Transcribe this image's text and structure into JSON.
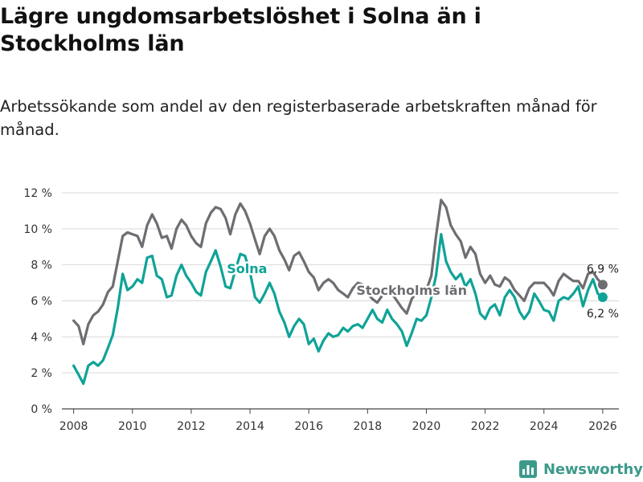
{
  "title": "Lägre ungdomsarbetslöshet i Solna än i Stockholms län",
  "subtitle": "Arbetssökande som andel av den registerbaserade arbetskraften månad för månad.",
  "brand": {
    "name": "Newsworthy",
    "icon": "bar-chart-logo-icon",
    "color": "#3d9a8b"
  },
  "chart_data": {
    "type": "line",
    "title": "Lägre ungdomsarbetslöshet i Solna än i Stockholms län",
    "xlabel": "",
    "ylabel": "",
    "xlim": [
      2007.6,
      2026.55
    ],
    "ylim": [
      0,
      12
    ],
    "grid": true,
    "x_ticks": [
      2008,
      2010,
      2012,
      2014,
      2016,
      2018,
      2020,
      2022,
      2024,
      2026
    ],
    "y_ticks": [
      0,
      2,
      4,
      6,
      8,
      10,
      12
    ],
    "y_tick_labels": [
      "0 %",
      "2 %",
      "4 %",
      "6 %",
      "8 %",
      "10 %",
      "12 %"
    ],
    "series": [
      {
        "name": "Stockholms län",
        "color": "#6d6d72",
        "end_label": "6,9 %",
        "label_at": [
          2019.5,
          6.6
        ],
        "points": [
          [
            2008.0,
            4.9
          ],
          [
            2008.17,
            4.6
          ],
          [
            2008.33,
            3.6
          ],
          [
            2008.5,
            4.7
          ],
          [
            2008.67,
            5.2
          ],
          [
            2008.83,
            5.4
          ],
          [
            2009.0,
            5.8
          ],
          [
            2009.17,
            6.5
          ],
          [
            2009.33,
            6.8
          ],
          [
            2009.5,
            8.2
          ],
          [
            2009.67,
            9.6
          ],
          [
            2009.83,
            9.8
          ],
          [
            2010.0,
            9.7
          ],
          [
            2010.17,
            9.6
          ],
          [
            2010.33,
            9.0
          ],
          [
            2010.5,
            10.2
          ],
          [
            2010.67,
            10.8
          ],
          [
            2010.83,
            10.3
          ],
          [
            2011.0,
            9.5
          ],
          [
            2011.17,
            9.6
          ],
          [
            2011.33,
            8.9
          ],
          [
            2011.5,
            10.0
          ],
          [
            2011.67,
            10.5
          ],
          [
            2011.83,
            10.2
          ],
          [
            2012.0,
            9.6
          ],
          [
            2012.17,
            9.2
          ],
          [
            2012.33,
            9.0
          ],
          [
            2012.5,
            10.3
          ],
          [
            2012.67,
            10.9
          ],
          [
            2012.83,
            11.2
          ],
          [
            2013.0,
            11.1
          ],
          [
            2013.17,
            10.6
          ],
          [
            2013.33,
            9.7
          ],
          [
            2013.5,
            10.8
          ],
          [
            2013.67,
            11.4
          ],
          [
            2013.83,
            11.0
          ],
          [
            2014.0,
            10.3
          ],
          [
            2014.17,
            9.4
          ],
          [
            2014.33,
            8.6
          ],
          [
            2014.5,
            9.6
          ],
          [
            2014.67,
            10.0
          ],
          [
            2014.83,
            9.6
          ],
          [
            2015.0,
            8.8
          ],
          [
            2015.17,
            8.3
          ],
          [
            2015.33,
            7.7
          ],
          [
            2015.5,
            8.5
          ],
          [
            2015.67,
            8.7
          ],
          [
            2015.83,
            8.2
          ],
          [
            2016.0,
            7.6
          ],
          [
            2016.17,
            7.3
          ],
          [
            2016.33,
            6.6
          ],
          [
            2016.5,
            7.0
          ],
          [
            2016.67,
            7.2
          ],
          [
            2016.83,
            7.0
          ],
          [
            2017.0,
            6.6
          ],
          [
            2017.17,
            6.4
          ],
          [
            2017.33,
            6.2
          ],
          [
            2017.5,
            6.7
          ],
          [
            2017.67,
            7.0
          ],
          [
            2017.83,
            6.9
          ],
          [
            2018.0,
            6.4
          ],
          [
            2018.17,
            6.1
          ],
          [
            2018.33,
            5.9
          ],
          [
            2018.5,
            6.3
          ],
          [
            2018.67,
            6.6
          ],
          [
            2018.83,
            6.4
          ],
          [
            2019.0,
            6.0
          ],
          [
            2019.17,
            5.6
          ],
          [
            2019.33,
            5.3
          ],
          [
            2019.5,
            6.1
          ],
          [
            2019.67,
            6.5
          ],
          [
            2019.83,
            6.4
          ],
          [
            2020.0,
            6.6
          ],
          [
            2020.17,
            7.4
          ],
          [
            2020.33,
            9.6
          ],
          [
            2020.5,
            11.6
          ],
          [
            2020.67,
            11.2
          ],
          [
            2020.83,
            10.2
          ],
          [
            2021.0,
            9.7
          ],
          [
            2021.17,
            9.3
          ],
          [
            2021.33,
            8.4
          ],
          [
            2021.5,
            9.0
          ],
          [
            2021.67,
            8.6
          ],
          [
            2021.83,
            7.5
          ],
          [
            2022.0,
            7.0
          ],
          [
            2022.17,
            7.4
          ],
          [
            2022.33,
            6.9
          ],
          [
            2022.5,
            6.8
          ],
          [
            2022.67,
            7.3
          ],
          [
            2022.83,
            7.1
          ],
          [
            2023.0,
            6.6
          ],
          [
            2023.17,
            6.3
          ],
          [
            2023.33,
            6.0
          ],
          [
            2023.5,
            6.7
          ],
          [
            2023.67,
            7.0
          ],
          [
            2023.83,
            7.0
          ],
          [
            2024.0,
            7.0
          ],
          [
            2024.17,
            6.7
          ],
          [
            2024.33,
            6.3
          ],
          [
            2024.5,
            7.1
          ],
          [
            2024.67,
            7.5
          ],
          [
            2024.83,
            7.3
          ],
          [
            2025.0,
            7.1
          ],
          [
            2025.17,
            7.1
          ],
          [
            2025.33,
            6.7
          ],
          [
            2025.5,
            7.5
          ],
          [
            2025.67,
            7.6
          ],
          [
            2025.83,
            7.2
          ],
          [
            2026.0,
            6.9
          ]
        ]
      },
      {
        "name": "Solna",
        "color": "#0fa397",
        "end_label": "6,2 %",
        "label_at": [
          2013.9,
          7.8
        ],
        "points": [
          [
            2008.0,
            2.4
          ],
          [
            2008.17,
            1.9
          ],
          [
            2008.33,
            1.4
          ],
          [
            2008.5,
            2.4
          ],
          [
            2008.67,
            2.6
          ],
          [
            2008.83,
            2.4
          ],
          [
            2009.0,
            2.7
          ],
          [
            2009.17,
            3.4
          ],
          [
            2009.33,
            4.1
          ],
          [
            2009.5,
            5.6
          ],
          [
            2009.67,
            7.5
          ],
          [
            2009.83,
            6.6
          ],
          [
            2010.0,
            6.8
          ],
          [
            2010.17,
            7.2
          ],
          [
            2010.33,
            7.0
          ],
          [
            2010.5,
            8.4
          ],
          [
            2010.67,
            8.5
          ],
          [
            2010.83,
            7.4
          ],
          [
            2011.0,
            7.2
          ],
          [
            2011.17,
            6.2
          ],
          [
            2011.33,
            6.3
          ],
          [
            2011.5,
            7.4
          ],
          [
            2011.67,
            8.0
          ],
          [
            2011.83,
            7.4
          ],
          [
            2012.0,
            7.0
          ],
          [
            2012.17,
            6.5
          ],
          [
            2012.33,
            6.3
          ],
          [
            2012.5,
            7.6
          ],
          [
            2012.67,
            8.2
          ],
          [
            2012.83,
            8.8
          ],
          [
            2013.0,
            7.9
          ],
          [
            2013.17,
            6.8
          ],
          [
            2013.33,
            6.7
          ],
          [
            2013.5,
            7.7
          ],
          [
            2013.67,
            8.6
          ],
          [
            2013.83,
            8.5
          ],
          [
            2014.0,
            7.6
          ],
          [
            2014.17,
            6.2
          ],
          [
            2014.33,
            5.9
          ],
          [
            2014.5,
            6.4
          ],
          [
            2014.67,
            7.0
          ],
          [
            2014.83,
            6.4
          ],
          [
            2015.0,
            5.4
          ],
          [
            2015.17,
            4.8
          ],
          [
            2015.33,
            4.0
          ],
          [
            2015.5,
            4.6
          ],
          [
            2015.67,
            5.0
          ],
          [
            2015.83,
            4.7
          ],
          [
            2016.0,
            3.6
          ],
          [
            2016.17,
            3.9
          ],
          [
            2016.33,
            3.2
          ],
          [
            2016.5,
            3.8
          ],
          [
            2016.67,
            4.2
          ],
          [
            2016.83,
            4.0
          ],
          [
            2017.0,
            4.1
          ],
          [
            2017.17,
            4.5
          ],
          [
            2017.33,
            4.3
          ],
          [
            2017.5,
            4.6
          ],
          [
            2017.67,
            4.7
          ],
          [
            2017.83,
            4.5
          ],
          [
            2018.0,
            5.0
          ],
          [
            2018.17,
            5.5
          ],
          [
            2018.33,
            5.0
          ],
          [
            2018.5,
            4.8
          ],
          [
            2018.67,
            5.5
          ],
          [
            2018.83,
            5.0
          ],
          [
            2019.0,
            4.7
          ],
          [
            2019.17,
            4.3
          ],
          [
            2019.33,
            3.5
          ],
          [
            2019.5,
            4.2
          ],
          [
            2019.67,
            5.0
          ],
          [
            2019.83,
            4.9
          ],
          [
            2020.0,
            5.2
          ],
          [
            2020.17,
            6.2
          ],
          [
            2020.33,
            7.4
          ],
          [
            2020.5,
            9.7
          ],
          [
            2020.67,
            8.2
          ],
          [
            2020.83,
            7.6
          ],
          [
            2021.0,
            7.2
          ],
          [
            2021.17,
            7.5
          ],
          [
            2021.33,
            6.8
          ],
          [
            2021.5,
            7.2
          ],
          [
            2021.67,
            6.4
          ],
          [
            2021.83,
            5.3
          ],
          [
            2022.0,
            5.0
          ],
          [
            2022.17,
            5.6
          ],
          [
            2022.33,
            5.8
          ],
          [
            2022.5,
            5.2
          ],
          [
            2022.67,
            6.2
          ],
          [
            2022.83,
            6.6
          ],
          [
            2023.0,
            6.2
          ],
          [
            2023.17,
            5.4
          ],
          [
            2023.33,
            5.0
          ],
          [
            2023.5,
            5.4
          ],
          [
            2023.67,
            6.4
          ],
          [
            2023.83,
            6.0
          ],
          [
            2024.0,
            5.5
          ],
          [
            2024.17,
            5.4
          ],
          [
            2024.33,
            4.9
          ],
          [
            2024.5,
            6.0
          ],
          [
            2024.67,
            6.2
          ],
          [
            2024.83,
            6.1
          ],
          [
            2025.0,
            6.4
          ],
          [
            2025.17,
            6.8
          ],
          [
            2025.33,
            5.7
          ],
          [
            2025.5,
            6.6
          ],
          [
            2025.67,
            7.2
          ],
          [
            2025.83,
            6.4
          ],
          [
            2026.0,
            6.2
          ]
        ]
      }
    ]
  }
}
